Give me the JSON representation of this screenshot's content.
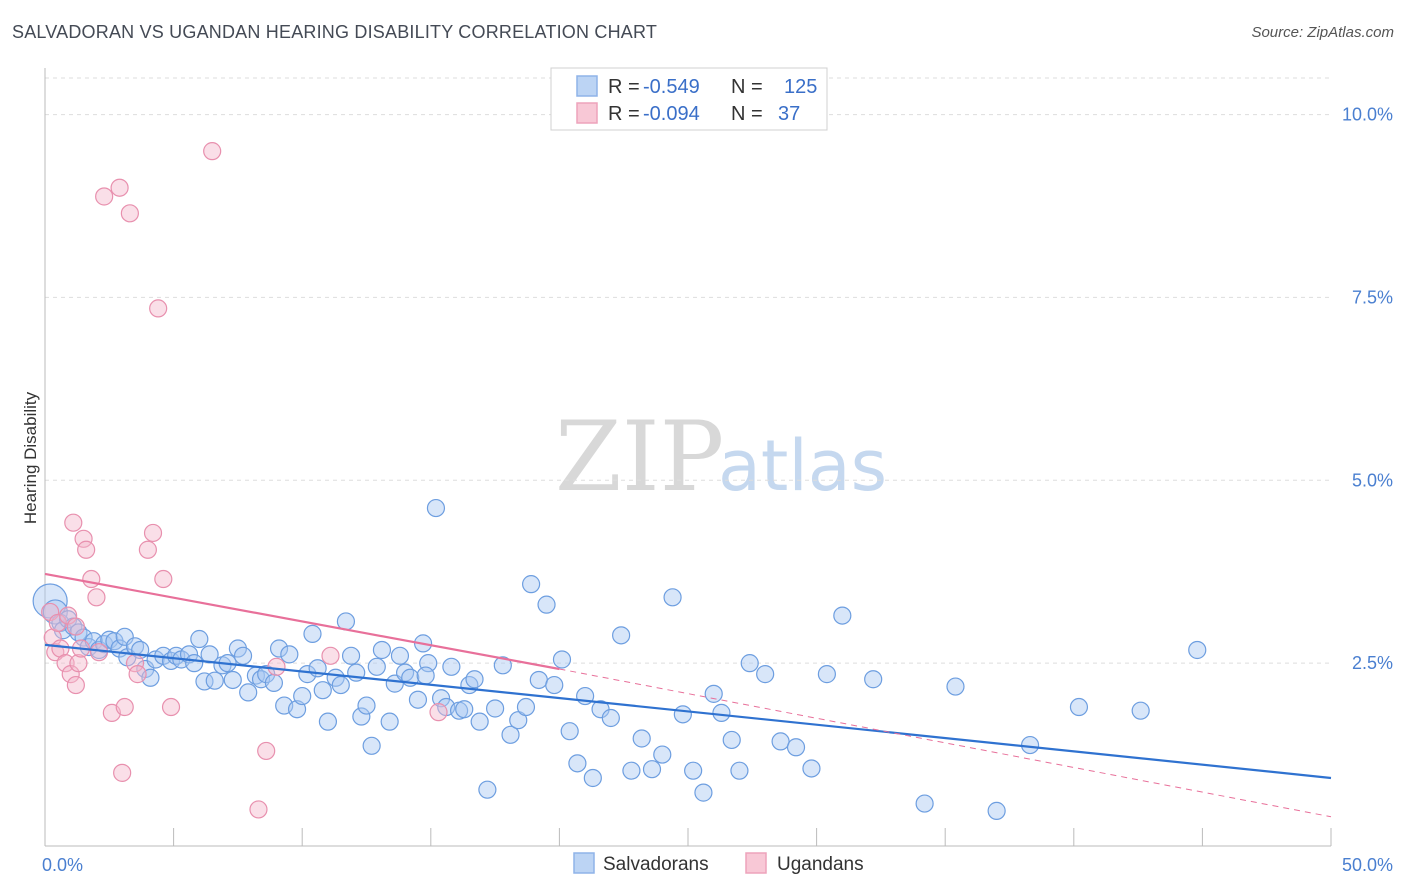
{
  "header": {
    "title": "SALVADORAN VS UGANDAN HEARING DISABILITY CORRELATION CHART",
    "source": "Source: ZipAtlas.com"
  },
  "watermark": {
    "zip": "ZIP",
    "atlas": "atlas"
  },
  "legend": {
    "rows": [
      {
        "r_label": "R =",
        "r_value": "-0.549",
        "n_label": "N =",
        "n_value": "125",
        "color": "#a9c8f2"
      },
      {
        "r_label": "R =",
        "r_value": "-0.094",
        "n_label": "N =",
        "n_value": "37",
        "color": "#f5b8cb"
      }
    ]
  },
  "bottom_legend": [
    {
      "label": "Salvadorans",
      "color": "#a9c8f2"
    },
    {
      "label": "Ugandans",
      "color": "#f5b8cb"
    }
  ],
  "chart_data": {
    "type": "scatter",
    "title": "SALVADORAN VS UGANDAN HEARING DISABILITY CORRELATION CHART",
    "ylabel": "Hearing Disability",
    "xlim": [
      0,
      50
    ],
    "ylim": [
      0,
      10.5
    ],
    "x_tick_labels": [
      "0.0%",
      "50.0%"
    ],
    "y_ticks": [
      2.5,
      5.0,
      7.5,
      10.0
    ],
    "y_tick_labels": [
      "2.5%",
      "5.0%",
      "7.5%",
      "10.0%"
    ],
    "grid": "horizontal dashed",
    "legend_position": "top-center",
    "colors": {
      "salvadorans": "#4a86d8",
      "ugandans": "#e890ae",
      "sal_line": "#2f72d0",
      "uga_line": "#e8709a"
    },
    "series": [
      {
        "name": "Salvadorans",
        "trend": {
          "x": [
            0,
            50
          ],
          "y": [
            2.75,
            0.93
          ]
        },
        "points": [
          [
            0.2,
            3.35
          ],
          [
            0.4,
            3.2
          ],
          [
            0.6,
            3.05
          ],
          [
            0.7,
            2.95
          ],
          [
            0.9,
            3.1
          ],
          [
            1.1,
            3.0
          ],
          [
            1.3,
            2.92
          ],
          [
            1.5,
            2.85
          ],
          [
            1.7,
            2.72
          ],
          [
            1.9,
            2.8
          ],
          [
            2.1,
            2.68
          ],
          [
            2.3,
            2.76
          ],
          [
            2.5,
            2.82
          ],
          [
            2.7,
            2.8
          ],
          [
            2.9,
            2.7
          ],
          [
            3.1,
            2.86
          ],
          [
            3.2,
            2.58
          ],
          [
            3.5,
            2.73
          ],
          [
            3.7,
            2.68
          ],
          [
            3.9,
            2.42
          ],
          [
            4.1,
            2.3
          ],
          [
            4.3,
            2.55
          ],
          [
            4.6,
            2.6
          ],
          [
            4.9,
            2.53
          ],
          [
            5.1,
            2.6
          ],
          [
            5.3,
            2.55
          ],
          [
            5.6,
            2.62
          ],
          [
            5.8,
            2.5
          ],
          [
            6.0,
            2.83
          ],
          [
            6.2,
            2.25
          ],
          [
            6.4,
            2.62
          ],
          [
            6.6,
            2.26
          ],
          [
            6.9,
            2.47
          ],
          [
            7.1,
            2.5
          ],
          [
            7.3,
            2.27
          ],
          [
            7.5,
            2.7
          ],
          [
            7.7,
            2.6
          ],
          [
            7.9,
            2.1
          ],
          [
            8.2,
            2.33
          ],
          [
            8.4,
            2.28
          ],
          [
            8.6,
            2.35
          ],
          [
            8.9,
            2.23
          ],
          [
            9.1,
            2.7
          ],
          [
            9.3,
            1.92
          ],
          [
            9.5,
            2.62
          ],
          [
            9.8,
            1.87
          ],
          [
            10.0,
            2.05
          ],
          [
            10.2,
            2.35
          ],
          [
            10.4,
            2.9
          ],
          [
            10.6,
            2.43
          ],
          [
            10.8,
            2.13
          ],
          [
            11.0,
            1.7
          ],
          [
            11.3,
            2.3
          ],
          [
            11.5,
            2.2
          ],
          [
            11.7,
            3.07
          ],
          [
            11.9,
            2.6
          ],
          [
            12.1,
            2.37
          ],
          [
            12.3,
            1.77
          ],
          [
            12.5,
            1.92
          ],
          [
            12.7,
            1.37
          ],
          [
            12.9,
            2.45
          ],
          [
            13.1,
            2.68
          ],
          [
            13.4,
            1.7
          ],
          [
            13.6,
            2.22
          ],
          [
            13.8,
            2.6
          ],
          [
            14.0,
            2.37
          ],
          [
            14.2,
            2.3
          ],
          [
            14.5,
            2.0
          ],
          [
            14.7,
            2.77
          ],
          [
            14.9,
            2.5
          ],
          [
            15.2,
            4.62
          ],
          [
            15.4,
            2.02
          ],
          [
            15.6,
            1.9
          ],
          [
            15.8,
            2.45
          ],
          [
            16.1,
            1.85
          ],
          [
            16.3,
            1.87
          ],
          [
            16.5,
            2.2
          ],
          [
            16.7,
            2.28
          ],
          [
            16.9,
            1.7
          ],
          [
            17.2,
            0.77
          ],
          [
            17.5,
            1.88
          ],
          [
            17.8,
            2.47
          ],
          [
            18.1,
            1.52
          ],
          [
            18.4,
            1.72
          ],
          [
            18.7,
            1.9
          ],
          [
            18.9,
            3.58
          ],
          [
            19.2,
            2.27
          ],
          [
            19.5,
            3.3
          ],
          [
            19.8,
            2.2
          ],
          [
            20.1,
            2.55
          ],
          [
            20.4,
            1.57
          ],
          [
            20.7,
            1.13
          ],
          [
            21.0,
            2.05
          ],
          [
            21.3,
            0.93
          ],
          [
            21.6,
            1.87
          ],
          [
            22.0,
            1.75
          ],
          [
            22.4,
            2.88
          ],
          [
            22.8,
            1.03
          ],
          [
            23.2,
            1.47
          ],
          [
            23.6,
            1.05
          ],
          [
            24.0,
            1.25
          ],
          [
            24.4,
            3.4
          ],
          [
            24.8,
            1.8
          ],
          [
            25.2,
            1.03
          ],
          [
            25.6,
            0.73
          ],
          [
            26.0,
            2.08
          ],
          [
            26.3,
            1.82
          ],
          [
            26.7,
            1.45
          ],
          [
            27.0,
            1.03
          ],
          [
            27.4,
            2.5
          ],
          [
            28.0,
            2.35
          ],
          [
            28.6,
            1.43
          ],
          [
            29.2,
            1.35
          ],
          [
            29.8,
            1.06
          ],
          [
            30.4,
            2.35
          ],
          [
            31.0,
            3.15
          ],
          [
            32.2,
            2.28
          ],
          [
            34.2,
            0.58
          ],
          [
            35.4,
            2.18
          ],
          [
            37.0,
            0.48
          ],
          [
            38.3,
            1.38
          ],
          [
            40.2,
            1.9
          ],
          [
            42.6,
            1.85
          ],
          [
            44.8,
            2.68
          ],
          [
            14.8,
            2.33
          ]
        ]
      },
      {
        "name": "Ugandans",
        "trend": {
          "x": [
            0,
            20
          ],
          "y": [
            3.72,
            2.42
          ]
        },
        "dashed_extension": {
          "x": [
            20,
            50
          ],
          "y": [
            2.42,
            0.4
          ]
        },
        "points": [
          [
            0.2,
            3.2
          ],
          [
            0.3,
            2.85
          ],
          [
            0.4,
            2.65
          ],
          [
            0.5,
            3.05
          ],
          [
            0.6,
            2.7
          ],
          [
            0.8,
            2.5
          ],
          [
            0.9,
            3.15
          ],
          [
            1.0,
            2.35
          ],
          [
            1.1,
            4.42
          ],
          [
            1.2,
            2.2
          ],
          [
            1.3,
            2.5
          ],
          [
            1.4,
            2.7
          ],
          [
            1.5,
            4.2
          ],
          [
            1.6,
            4.05
          ],
          [
            1.8,
            3.65
          ],
          [
            2.0,
            3.4
          ],
          [
            2.1,
            2.65
          ],
          [
            2.3,
            8.88
          ],
          [
            2.6,
            1.82
          ],
          [
            2.9,
            9.0
          ],
          [
            3.0,
            1.0
          ],
          [
            3.1,
            1.9
          ],
          [
            3.3,
            8.65
          ],
          [
            3.5,
            2.5
          ],
          [
            3.6,
            2.35
          ],
          [
            4.0,
            4.05
          ],
          [
            4.2,
            4.28
          ],
          [
            4.4,
            7.35
          ],
          [
            4.6,
            3.65
          ],
          [
            4.9,
            1.9
          ],
          [
            6.5,
            9.5
          ],
          [
            8.3,
            0.5
          ],
          [
            8.6,
            1.3
          ],
          [
            9.0,
            2.45
          ],
          [
            11.1,
            2.6
          ],
          [
            15.3,
            1.83
          ],
          [
            1.2,
            3.0
          ]
        ]
      }
    ]
  }
}
